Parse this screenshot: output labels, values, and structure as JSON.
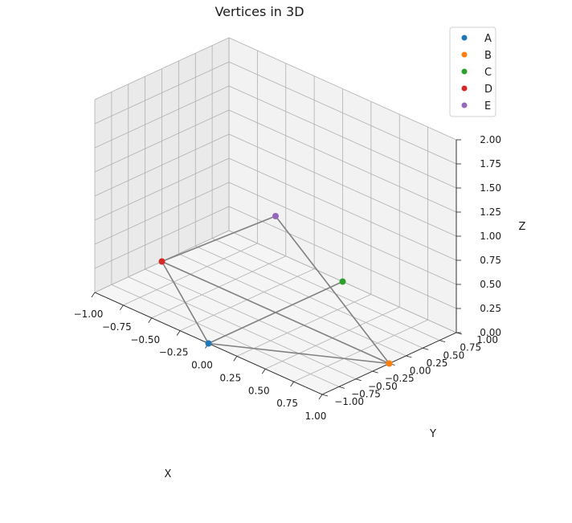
{
  "chart_data": {
    "type": "scatter",
    "projection": "3d",
    "title": "Vertices in 3D",
    "xlabel": "X",
    "ylabel": "Y",
    "zlabel": "Z",
    "xlim": [
      -1.0,
      1.0
    ],
    "ylim": [
      -1.0,
      1.0
    ],
    "zlim": [
      0.0,
      2.0
    ],
    "x_ticks": [
      "−1.00",
      "−0.75",
      "−0.50",
      "−0.25",
      "0.00",
      "0.25",
      "0.50",
      "0.75",
      "1.00"
    ],
    "y_ticks": [
      "−1.00",
      "−0.75",
      "−0.50",
      "−0.25",
      "0.00",
      "0.25",
      "0.50",
      "0.75",
      "1.00"
    ],
    "z_ticks": [
      "0.00",
      "0.25",
      "0.50",
      "0.75",
      "1.00",
      "1.25",
      "1.50",
      "1.75",
      "2.00"
    ],
    "grid": true,
    "legend": "top-right",
    "series": [
      {
        "name": "A",
        "color": "#1f77b4",
        "x": 0.0,
        "y": -1.0,
        "z": 0.0
      },
      {
        "name": "B",
        "color": "#ff7f0e",
        "x": 1.0,
        "y": 0.0,
        "z": 0.0
      },
      {
        "name": "C",
        "color": "#2ca02c",
        "x": 0.0,
        "y": 1.0,
        "z": 0.0
      },
      {
        "name": "D",
        "color": "#d62728",
        "x": -1.0,
        "y": 0.0,
        "z": 0.0
      },
      {
        "name": "E",
        "color": "#9467bd",
        "x": 0.0,
        "y": 0.0,
        "z": 1.0
      }
    ],
    "edges": [
      [
        "A",
        "B"
      ],
      [
        "A",
        "C"
      ],
      [
        "A",
        "D"
      ],
      [
        "B",
        "D"
      ],
      [
        "B",
        "E"
      ],
      [
        "D",
        "E"
      ]
    ],
    "edge_color": "#808080"
  }
}
